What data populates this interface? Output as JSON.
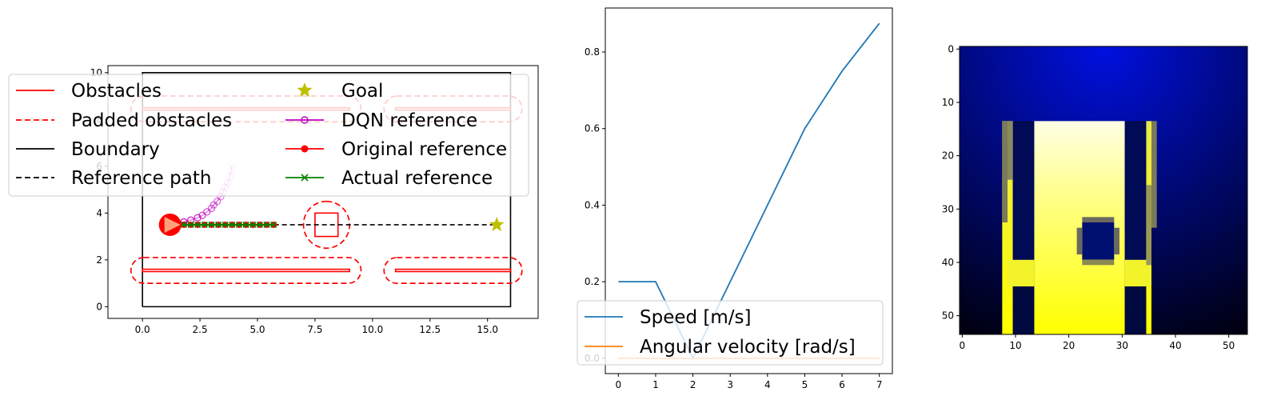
{
  "chart_data": [
    {
      "type": "line",
      "xlim": [
        -1.5,
        17.2
      ],
      "ylim": [
        -0.5,
        10.3
      ],
      "xticks": [
        "0.0",
        "2.5",
        "5.0",
        "7.5",
        "10.0",
        "12.5",
        "15.0"
      ],
      "yticks": [
        "0",
        "2",
        "4",
        "6",
        "8",
        "10"
      ],
      "legend": {
        "placement": "upper-left",
        "columns": 2,
        "entries": [
          "Obstacles",
          "Padded obstacles",
          "Boundary",
          "Reference path",
          "Goal",
          "DQN reference",
          "Original reference",
          "Actual reference"
        ]
      },
      "colors": {
        "obstacles": "#ff0000",
        "boundary": "#000000",
        "dqn": "#bf00bf",
        "original": "#ff0000",
        "actual": "#008000",
        "goal": "#bfbf00",
        "robot": "#ff0000",
        "robot_heading": "#ffa07a"
      },
      "boundary": [
        [
          0,
          0
        ],
        [
          16,
          0
        ],
        [
          16,
          10
        ],
        [
          0,
          10
        ],
        [
          0,
          0
        ]
      ],
      "obstacles": [
        {
          "x": [
            0,
            9
          ],
          "y": [
            1.5,
            1.6
          ]
        },
        {
          "x": [
            11,
            16
          ],
          "y": [
            1.5,
            1.6
          ]
        },
        {
          "x": [
            0,
            9
          ],
          "y": [
            8.4,
            8.5
          ]
        },
        {
          "x": [
            11,
            16
          ],
          "y": [
            8.4,
            8.5
          ]
        },
        {
          "x": [
            7.5,
            8.5
          ],
          "y": [
            3.0,
            4.0
          ]
        }
      ],
      "padded_obstacles": [
        {
          "x": [
            -0.5,
            9.5
          ],
          "y": [
            1.0,
            2.1
          ]
        },
        {
          "x": [
            10.5,
            16.5
          ],
          "y": [
            1.0,
            2.1
          ]
        },
        {
          "x": [
            -0.5,
            9.5
          ],
          "y": [
            7.9,
            9.0
          ]
        },
        {
          "x": [
            10.5,
            16.5
          ],
          "y": [
            7.9,
            9.0
          ]
        },
        {
          "x": [
            7.0,
            9.0
          ],
          "y": [
            2.5,
            4.5
          ]
        }
      ],
      "reference_path": {
        "x": [
          1.2,
          15.4
        ],
        "y": [
          3.5,
          3.5
        ]
      },
      "goal": {
        "x": 15.4,
        "y": 3.5
      },
      "robot": {
        "x": 1.2,
        "y": 3.5
      },
      "dqn_reference": {
        "x": [
          1.2,
          1.5,
          1.8,
          2.1,
          2.4,
          2.6,
          2.8,
          3.0,
          3.1,
          3.25,
          3.4,
          3.5,
          3.6,
          3.7,
          3.8,
          3.85,
          3.9
        ],
        "y": [
          3.5,
          3.55,
          3.62,
          3.7,
          3.8,
          3.9,
          4.05,
          4.2,
          4.35,
          4.5,
          4.7,
          4.9,
          5.1,
          5.3,
          5.55,
          5.8,
          6.05
        ]
      },
      "original_reference": {
        "x": [
          1.2,
          1.5,
          1.8,
          2.1,
          2.4,
          2.7,
          3.0,
          3.3,
          3.6,
          3.9,
          4.2,
          4.5,
          4.8,
          5.1,
          5.4,
          5.7
        ],
        "y": [
          3.5,
          3.5,
          3.5,
          3.5,
          3.5,
          3.5,
          3.5,
          3.5,
          3.5,
          3.5,
          3.5,
          3.5,
          3.5,
          3.5,
          3.5,
          3.5
        ]
      },
      "actual_reference": {
        "x": [
          1.2,
          1.5,
          1.8,
          2.1,
          2.4,
          2.7,
          3.0,
          3.3,
          3.6,
          3.9,
          4.2,
          4.5,
          4.8,
          5.1,
          5.4,
          5.7
        ],
        "y": [
          3.5,
          3.5,
          3.5,
          3.5,
          3.5,
          3.5,
          3.5,
          3.5,
          3.5,
          3.5,
          3.5,
          3.5,
          3.5,
          3.5,
          3.5,
          3.5
        ]
      }
    },
    {
      "type": "line",
      "xlim": [
        -0.35,
        7.35
      ],
      "ylim": [
        -0.04,
        0.915
      ],
      "xticks": [
        "0",
        "1",
        "2",
        "3",
        "4",
        "5",
        "6",
        "7"
      ],
      "yticks": [
        "0.0",
        "0.2",
        "0.4",
        "0.6",
        "0.8"
      ],
      "legend": {
        "placement": "lower-left",
        "entries": [
          "Speed [m/s]",
          "Angular velocity [rad/s]"
        ]
      },
      "x": [
        0,
        1,
        2,
        3,
        4,
        5,
        6,
        7
      ],
      "series": [
        {
          "name": "Speed [m/s]",
          "color": "#1f77b4",
          "values": [
            0.2,
            0.2,
            0.0,
            0.2,
            0.4,
            0.6,
            0.75,
            0.875
          ]
        },
        {
          "name": "Angular velocity [rad/s]",
          "color": "#ff7f0e",
          "values": [
            0,
            0,
            0,
            0,
            0,
            0,
            0,
            0
          ]
        }
      ]
    },
    {
      "type": "heatmap",
      "xlim": [
        -0.5,
        53.5
      ],
      "ylim": [
        53.5,
        -0.5
      ],
      "xticks": [
        "0",
        "10",
        "20",
        "30",
        "40",
        "50"
      ],
      "yticks": [
        "0",
        "10",
        "20",
        "30",
        "40",
        "50"
      ],
      "colors": {
        "background": "#000020",
        "glow": "#0010e0",
        "corridor_top": "#ffffe0",
        "corridor_bottom": "#ffff00",
        "edge": "#808066"
      }
    }
  ]
}
